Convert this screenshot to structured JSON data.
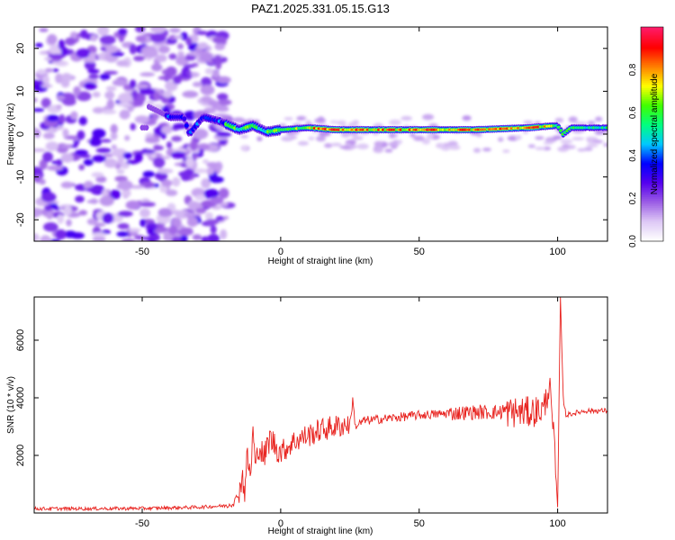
{
  "title": "PAZ1.2025.331.05.15.G13",
  "chart_data": [
    {
      "type": "heatmap",
      "xlabel": "Height of straight line (km)",
      "ylabel": "Frequency (Hz)",
      "xlim": [
        -89,
        118
      ],
      "ylim": [
        -25,
        25
      ],
      "xticks": [
        -50,
        0,
        50,
        100
      ],
      "xtick_labels": [
        "-50",
        "0",
        "50",
        "100"
      ],
      "yticks": [
        -20,
        -10,
        0,
        10,
        20
      ],
      "ytick_labels": [
        "-20",
        "-10",
        "0",
        "10",
        "20"
      ],
      "grid": false,
      "colorbar": {
        "label": "Normalized spectral amplitude",
        "range": [
          0,
          1
        ],
        "ticks": [
          0.0,
          0.2,
          0.4,
          0.6,
          0.8
        ],
        "tick_labels": [
          "0.0",
          "0.2",
          "0.4",
          "0.6",
          "0.8"
        ],
        "colormap": [
          "#ffffff",
          "#ddc8f5",
          "#9b5de5",
          "#5500ee",
          "#0000ff",
          "#00c8ff",
          "#00ff80",
          "#40ff00",
          "#ffff00",
          "#ff8000",
          "#ff0000",
          "#ff1a66"
        ]
      },
      "ridge": {
        "description_points": [
          [
            -48,
            6.5
          ],
          [
            -40,
            4
          ],
          [
            -35,
            4
          ],
          [
            -33,
            0
          ],
          [
            -28,
            4
          ],
          [
            -22,
            3
          ],
          [
            -15,
            1
          ],
          [
            -10,
            2
          ],
          [
            -5,
            0.5
          ],
          [
            0,
            1
          ],
          [
            10,
            1.5
          ],
          [
            20,
            1
          ],
          [
            30,
            1
          ],
          [
            50,
            1
          ],
          [
            70,
            1
          ],
          [
            90,
            1.5
          ],
          [
            100,
            2
          ],
          [
            102,
            0
          ],
          [
            105,
            1.5
          ],
          [
            118,
            1.5
          ]
        ],
        "peak_amplitude": 1.0
      }
    },
    {
      "type": "line",
      "xlabel": "Height of straight line (km)",
      "ylabel": "SNR (10 * v/v)",
      "xlim": [
        -89,
        118
      ],
      "ylim": [
        0,
        7500
      ],
      "xticks": [
        -50,
        0,
        50,
        100
      ],
      "xtick_labels": [
        "-50",
        "0",
        "50",
        "100"
      ],
      "yticks": [
        2000,
        4000,
        6000
      ],
      "ytick_labels": [
        "2000",
        "4000",
        "6000"
      ],
      "grid": false,
      "series": [
        {
          "color": "#e8231f",
          "points": [
            [
              -89,
              150
            ],
            [
              -70,
              150
            ],
            [
              -50,
              160
            ],
            [
              -30,
              200
            ],
            [
              -20,
              250
            ],
            [
              -17,
              350
            ],
            [
              -15,
              700
            ],
            [
              -14,
              1300
            ],
            [
              -13,
              800
            ],
            [
              -12,
              2000
            ],
            [
              -11,
              1200
            ],
            [
              -10,
              2800
            ],
            [
              -9,
              1500
            ],
            [
              -8,
              2400
            ],
            [
              -6,
              1900
            ],
            [
              -4,
              2600
            ],
            [
              0,
              2100
            ],
            [
              5,
              2500
            ],
            [
              10,
              2700
            ],
            [
              15,
              2900
            ],
            [
              20,
              3000
            ],
            [
              25,
              3100
            ],
            [
              26,
              3900
            ],
            [
              27,
              3000
            ],
            [
              30,
              3200
            ],
            [
              40,
              3300
            ],
            [
              50,
              3400
            ],
            [
              60,
              3450
            ],
            [
              70,
              3500
            ],
            [
              80,
              3500
            ],
            [
              90,
              3500
            ],
            [
              95,
              3600
            ],
            [
              97,
              4500
            ],
            [
              99,
              2000
            ],
            [
              100,
              200
            ],
            [
              101,
              7500
            ],
            [
              102,
              4000
            ],
            [
              103,
              3400
            ],
            [
              110,
              3550
            ],
            [
              118,
              3550
            ]
          ]
        }
      ]
    }
  ]
}
